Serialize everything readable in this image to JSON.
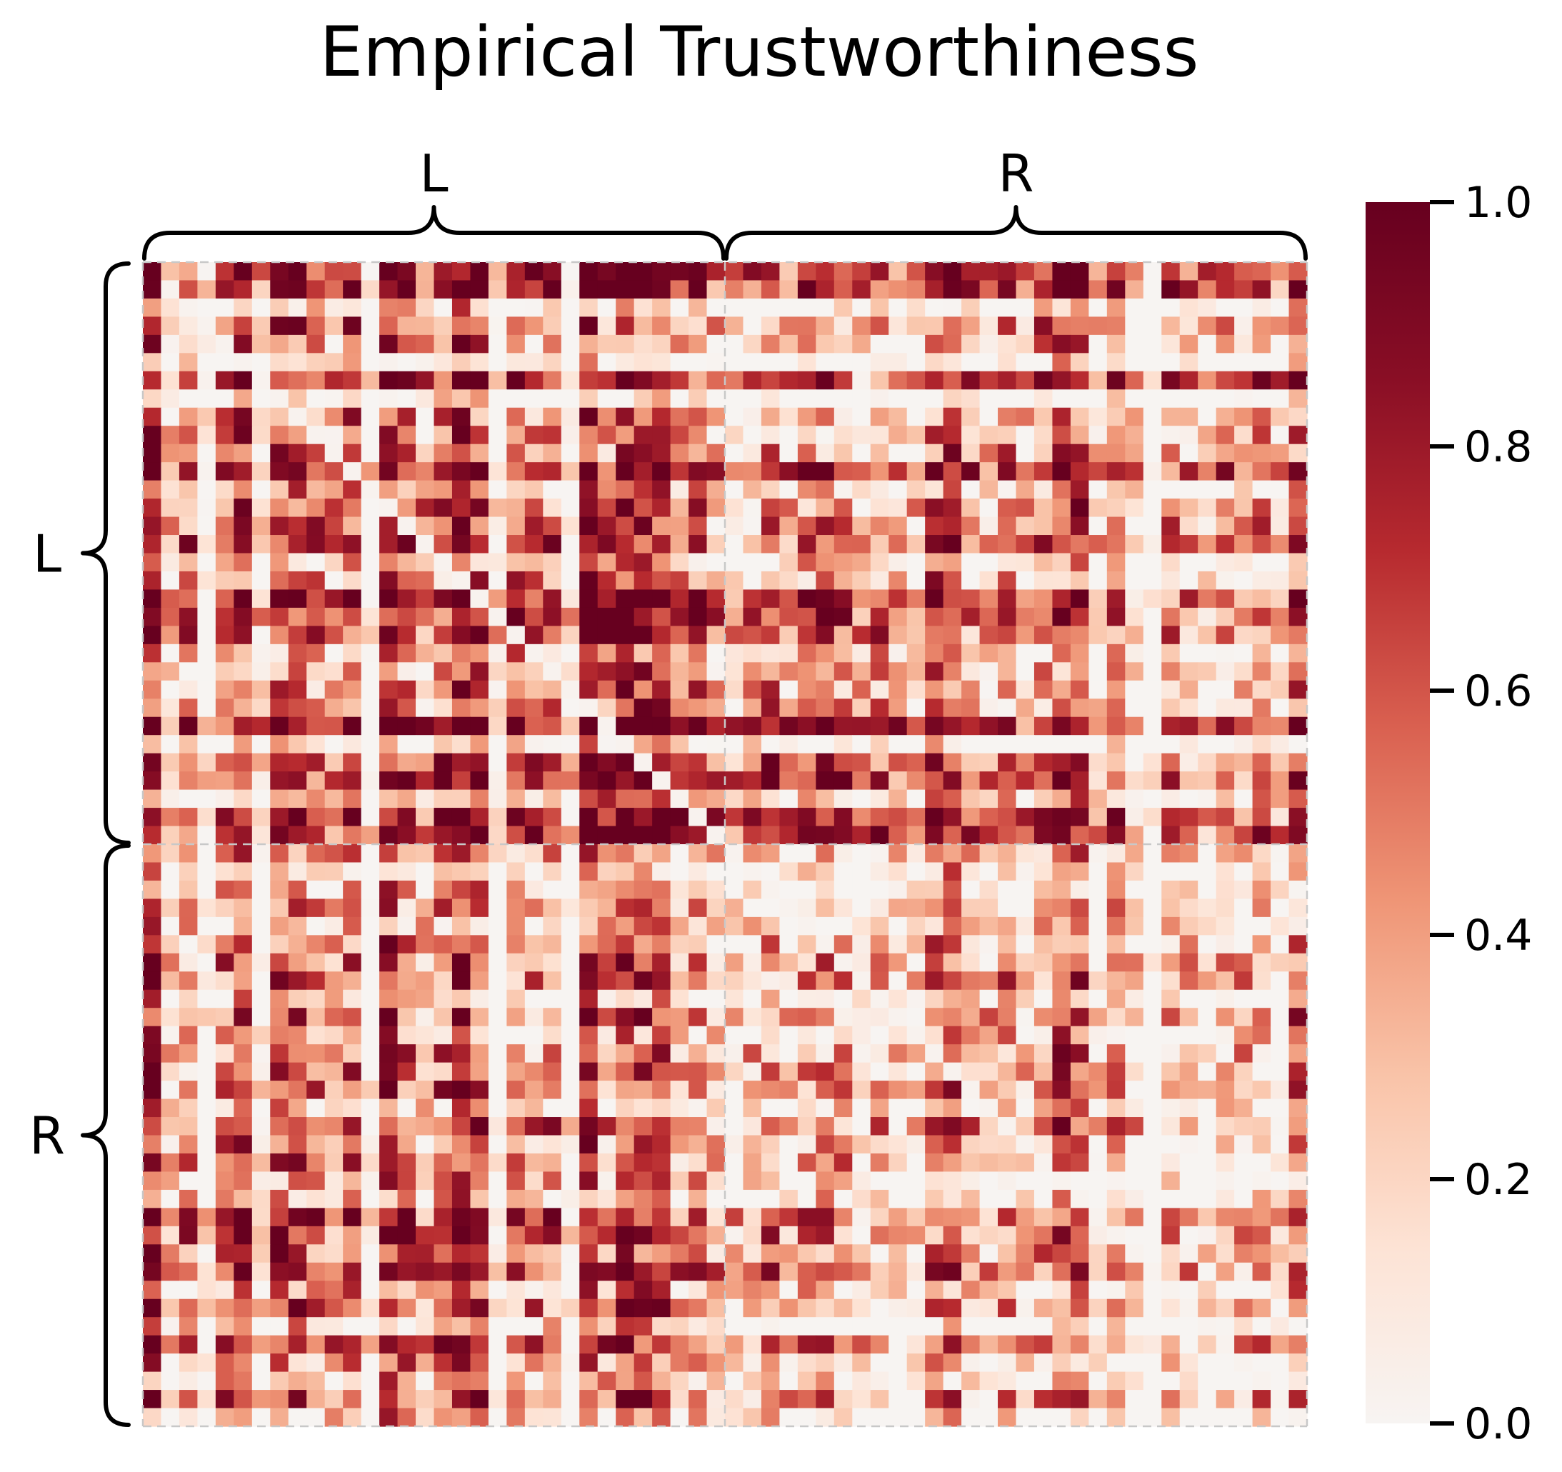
{
  "chart_data": {
    "type": "heatmap",
    "title": "Empirical Trustworthiness",
    "rows": 64,
    "cols": 64,
    "row_groups": [
      {
        "label": "L",
        "start": 0,
        "end": 32
      },
      {
        "label": "R",
        "start": 32,
        "end": 64
      }
    ],
    "col_groups": [
      {
        "label": "L",
        "start": 0,
        "end": 32
      },
      {
        "label": "R",
        "start": 32,
        "end": 64
      }
    ],
    "colorbar": {
      "min": 0.0,
      "max": 1.0,
      "ticks": [
        "0.0",
        "0.2",
        "0.4",
        "0.6",
        "0.8",
        "1.0"
      ],
      "colormap": "Reds"
    },
    "colorscale": [
      "#f7f4f2",
      "#fde3d5",
      "#f9c3a8",
      "#ef9576",
      "#d96050",
      "#b72a2f",
      "#890e25",
      "#67001f"
    ],
    "grid_lines": "dashed group dividers",
    "values": []
  }
}
